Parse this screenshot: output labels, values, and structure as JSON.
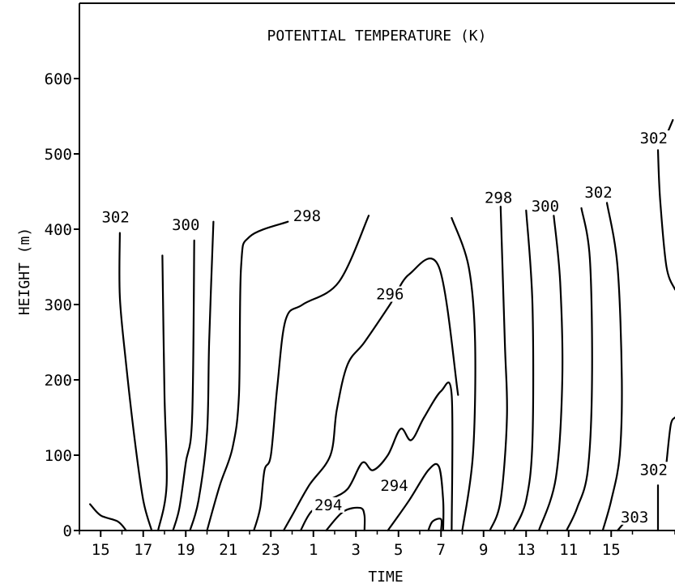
{
  "chart_data": {
    "type": "contour",
    "title": "POTENTIAL TEMPERATURE (K)",
    "xlabel": "TIME",
    "ylabel": "HEIGHT (m)",
    "x_ticks": [
      "15",
      "17",
      "19",
      "21",
      "23",
      "1",
      "3",
      "5",
      "7",
      "9",
      "13",
      "11",
      "15"
    ],
    "y_ticks": [
      "0",
      "100",
      "200",
      "300",
      "400",
      "500",
      "600"
    ],
    "ylim": [
      0,
      700
    ],
    "contours": [
      {
        "level": "302",
        "points": [
          [
            14.5,
            35
          ],
          [
            15,
            20
          ],
          [
            15.8,
            12
          ],
          [
            16.2,
            0
          ]
        ]
      },
      {
        "level": "302",
        "labeled": true,
        "points": [
          [
            15.9,
            395
          ],
          [
            15.9,
            310
          ],
          [
            16.2,
            220
          ],
          [
            16.6,
            120
          ],
          [
            17.0,
            40
          ],
          [
            17.4,
            0
          ]
        ]
      },
      {
        "level": "",
        "points": [
          [
            17.9,
            365
          ],
          [
            18.0,
            180
          ],
          [
            18.1,
            60
          ],
          [
            17.7,
            0
          ]
        ]
      },
      {
        "level": "300",
        "labeled": true,
        "points": [
          [
            19.4,
            385
          ],
          [
            19.3,
            150
          ],
          [
            19.0,
            90
          ],
          [
            18.7,
            30
          ],
          [
            18.4,
            0
          ]
        ]
      },
      {
        "level": "",
        "points": [
          [
            20.3,
            410
          ],
          [
            20.1,
            250
          ],
          [
            20.0,
            130
          ],
          [
            19.6,
            40
          ],
          [
            19.2,
            0
          ]
        ]
      },
      {
        "level": "298",
        "labeled": true,
        "points": [
          [
            23.8,
            410
          ],
          [
            22.0,
            390
          ],
          [
            21.6,
            350
          ],
          [
            21.5,
            180
          ],
          [
            21.2,
            110
          ],
          [
            20.6,
            60
          ],
          [
            20.0,
            0
          ]
        ]
      },
      {
        "level": "",
        "points": [
          [
            27.6,
            418
          ],
          [
            26.2,
            330
          ],
          [
            24.5,
            300
          ],
          [
            23.7,
            280
          ],
          [
            23.3,
            190
          ],
          [
            23.0,
            100
          ],
          [
            22.7,
            80
          ],
          [
            22.5,
            30
          ],
          [
            22.2,
            0
          ]
        ]
      },
      {
        "level": "296",
        "labeled": true,
        "points": [
          [
            31.8,
            180
          ],
          [
            30.9,
            350
          ],
          [
            29.5,
            340
          ],
          [
            28.6,
            300
          ],
          [
            27.4,
            250
          ],
          [
            26.6,
            220
          ],
          [
            26.1,
            160
          ],
          [
            25.8,
            100
          ],
          [
            24.8,
            60
          ],
          [
            24.0,
            20
          ],
          [
            23.6,
            0
          ]
        ]
      },
      {
        "level": "",
        "points": [
          [
            31.5,
            0
          ],
          [
            31.5,
            180
          ],
          [
            31.0,
            185
          ],
          [
            30.2,
            150
          ],
          [
            29.6,
            120
          ],
          [
            29.1,
            135
          ],
          [
            28.5,
            100
          ],
          [
            27.8,
            80
          ],
          [
            27.3,
            90
          ],
          [
            26.6,
            55
          ],
          [
            25.7,
            40
          ],
          [
            24.9,
            25
          ],
          [
            24.4,
            0
          ]
        ]
      },
      {
        "level": "294",
        "labeled": true,
        "points": [
          [
            25.6,
            0
          ],
          [
            26.4,
            25
          ],
          [
            27.2,
            30
          ],
          [
            27.4,
            20
          ],
          [
            27.4,
            0
          ]
        ]
      },
      {
        "level": "294",
        "labeled": true,
        "points": [
          [
            28.5,
            0
          ],
          [
            29.5,
            40
          ],
          [
            30.4,
            80
          ],
          [
            30.9,
            85
          ],
          [
            31.1,
            40
          ],
          [
            31.1,
            0
          ]
        ]
      },
      {
        "level": "",
        "points": [
          [
            30.4,
            0
          ],
          [
            30.6,
            12
          ],
          [
            31.0,
            15
          ],
          [
            31.0,
            0
          ]
        ]
      },
      {
        "level": "",
        "points": [
          [
            31.5,
            415
          ],
          [
            32.3,
            350
          ],
          [
            32.6,
            250
          ],
          [
            32.5,
            100
          ],
          [
            32.0,
            0
          ]
        ]
      },
      {
        "level": "298",
        "labeled": true,
        "points": [
          [
            33.8,
            430
          ],
          [
            34.0,
            250
          ],
          [
            34.1,
            150
          ],
          [
            33.8,
            40
          ],
          [
            33.3,
            0
          ]
        ]
      },
      {
        "level": "",
        "points": [
          [
            35.0,
            425
          ],
          [
            35.3,
            300
          ],
          [
            35.3,
            120
          ],
          [
            35.0,
            40
          ],
          [
            34.4,
            0
          ]
        ]
      },
      {
        "level": "300",
        "labeled": true,
        "points": [
          [
            36.3,
            418
          ],
          [
            36.6,
            330
          ],
          [
            36.7,
            200
          ],
          [
            36.4,
            70
          ],
          [
            35.6,
            0
          ]
        ]
      },
      {
        "level": "",
        "points": [
          [
            37.6,
            428
          ],
          [
            38.0,
            360
          ],
          [
            38.1,
            200
          ],
          [
            37.9,
            80
          ],
          [
            37.4,
            30
          ],
          [
            36.9,
            0
          ]
        ]
      },
      {
        "level": "302",
        "labeled": true,
        "points": [
          [
            38.8,
            435
          ],
          [
            39.3,
            350
          ],
          [
            39.5,
            200
          ],
          [
            39.4,
            100
          ],
          [
            39.0,
            40
          ],
          [
            38.6,
            0
          ]
        ]
      },
      {
        "level": "303",
        "labeled": true,
        "points": [
          [
            39.3,
            0
          ],
          [
            39.6,
            10
          ]
        ]
      },
      {
        "level": "302",
        "labeled": true,
        "points": [
          [
            41.2,
            60
          ],
          [
            41.2,
            0
          ]
        ]
      },
      {
        "level": "",
        "points": [
          [
            42.0,
            150
          ],
          [
            41.8,
            140
          ],
          [
            41.6,
            90
          ]
        ]
      },
      {
        "level": "302",
        "labeled": true,
        "points": [
          [
            41.6,
            525
          ],
          [
            41.9,
            545
          ]
        ]
      },
      {
        "level": "",
        "points": [
          [
            41.2,
            505
          ],
          [
            41.3,
            440
          ],
          [
            41.6,
            350
          ],
          [
            42.0,
            320
          ]
        ]
      }
    ],
    "contour_labels": [
      {
        "text": "302",
        "x": 15.7,
        "y": 410
      },
      {
        "text": "300",
        "x": 19.0,
        "y": 400
      },
      {
        "text": "298",
        "x": 24.7,
        "y": 412
      },
      {
        "text": "296",
        "x": 28.6,
        "y": 308
      },
      {
        "text": "294",
        "x": 25.7,
        "y": 28
      },
      {
        "text": "294",
        "x": 28.8,
        "y": 54
      },
      {
        "text": "298",
        "x": 33.7,
        "y": 436
      },
      {
        "text": "300",
        "x": 35.9,
        "y": 425
      },
      {
        "text": "302",
        "x": 38.4,
        "y": 443
      },
      {
        "text": "303",
        "x": 40.1,
        "y": 12
      },
      {
        "text": "302",
        "x": 41.0,
        "y": 75
      },
      {
        "text": "302",
        "x": 41.0,
        "y": 515
      }
    ]
  }
}
